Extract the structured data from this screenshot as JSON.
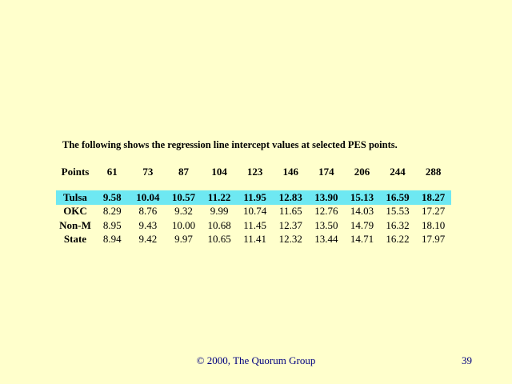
{
  "slide": {
    "title": "The following shows the regression line intercept values at selected PES points.",
    "background_color": "#FFFFCC"
  },
  "table": {
    "highlight_color": "#6EE8F2",
    "header": [
      "Points",
      "61",
      "73",
      "87",
      "104",
      "123",
      "146",
      "174",
      "206",
      "244",
      "288"
    ],
    "rows": [
      {
        "label": "Tulsa",
        "highlighted": true,
        "values": [
          "9.58",
          "10.04",
          "10.57",
          "11.22",
          "11.95",
          "12.83",
          "13.90",
          "15.13",
          "16.59",
          "18.27"
        ]
      },
      {
        "label": "OKC",
        "highlighted": false,
        "values": [
          "8.29",
          "8.76",
          "9.32",
          "9.99",
          "10.74",
          "11.65",
          "12.76",
          "14.03",
          "15.53",
          "17.27"
        ]
      },
      {
        "label": "Non-M",
        "highlighted": false,
        "values": [
          "8.95",
          "9.43",
          "10.00",
          "10.68",
          "11.45",
          "12.37",
          "13.50",
          "14.79",
          "16.32",
          "18.10"
        ]
      },
      {
        "label": "State",
        "highlighted": false,
        "values": [
          "8.94",
          "9.42",
          "9.97",
          "10.65",
          "11.41",
          "12.32",
          "13.44",
          "14.71",
          "16.22",
          "17.97"
        ]
      }
    ]
  },
  "footer": {
    "copyright": "© 2000, The Quorum Group",
    "page_number": "39",
    "text_color": "#000080"
  },
  "chart_data": {
    "type": "table",
    "title": "The following shows the regression line intercept values at selected PES points.",
    "categories": [
      61,
      73,
      87,
      104,
      123,
      146,
      174,
      206,
      244,
      288
    ],
    "series": [
      {
        "name": "Tulsa",
        "values": [
          9.58,
          10.04,
          10.57,
          11.22,
          11.95,
          12.83,
          13.9,
          15.13,
          16.59,
          18.27
        ]
      },
      {
        "name": "OKC",
        "values": [
          8.29,
          8.76,
          9.32,
          9.99,
          10.74,
          11.65,
          12.76,
          14.03,
          15.53,
          17.27
        ]
      },
      {
        "name": "Non-M",
        "values": [
          8.95,
          9.43,
          10.0,
          10.68,
          11.45,
          12.37,
          13.5,
          14.79,
          16.32,
          18.1
        ]
      },
      {
        "name": "State",
        "values": [
          8.94,
          9.42,
          9.97,
          10.65,
          11.41,
          12.32,
          13.44,
          14.71,
          16.22,
          17.97
        ]
      }
    ],
    "xlabel": "Points",
    "highlighted_series": "Tulsa"
  }
}
